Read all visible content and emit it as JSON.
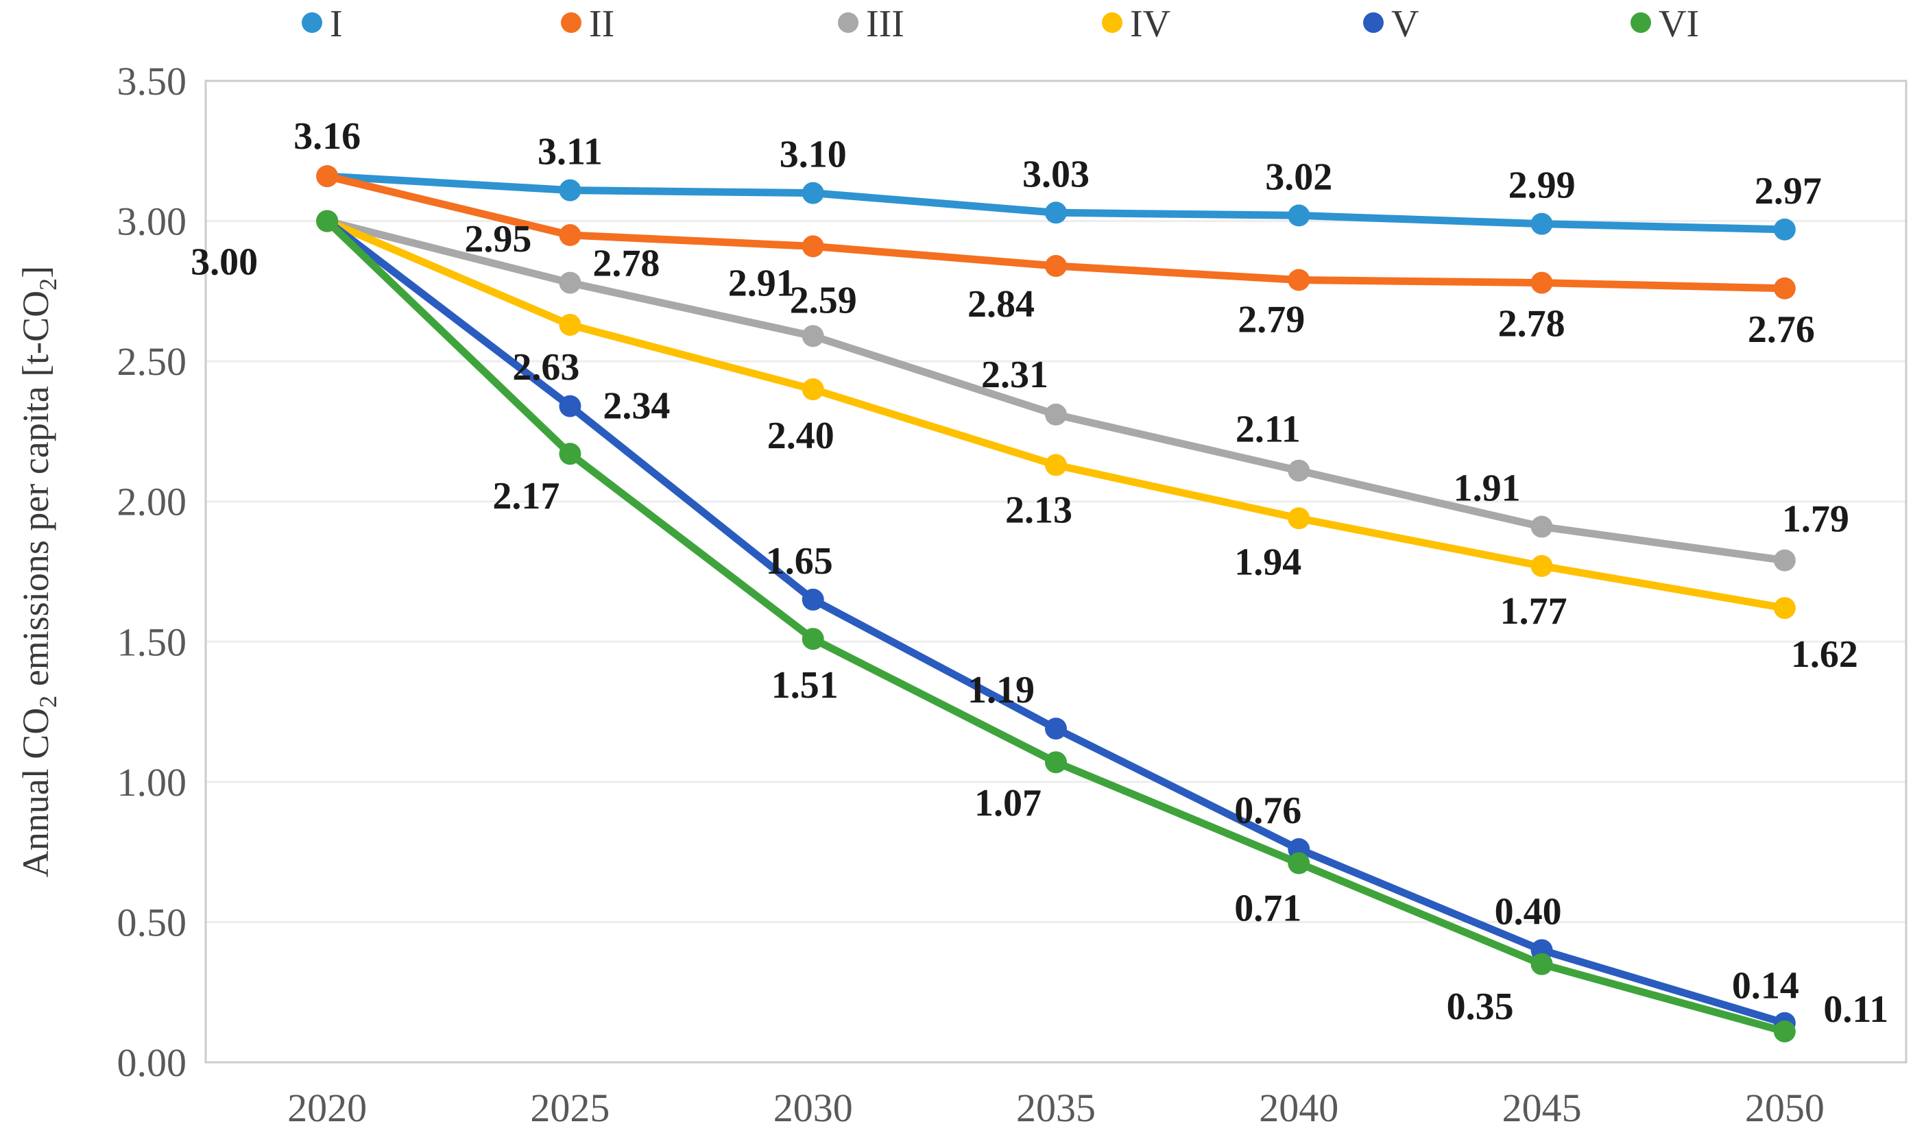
{
  "figure": {
    "background": "#FFFFFF",
    "data_label_color": "#1A1A1A",
    "axis_text_color": "#595959",
    "legend_text_color": "#3A3A3A",
    "gridline_color": "#EDEDED",
    "border_color": "#CCCCCC"
  },
  "legend": {
    "items": [
      {
        "label": "I",
        "color": "#2E93D1"
      },
      {
        "label": "II",
        "color": "#F46F20"
      },
      {
        "label": "III",
        "color": "#A8A8A8"
      },
      {
        "label": "IV",
        "color": "#FFC000"
      },
      {
        "label": "V",
        "color": "#2A5CBF"
      },
      {
        "label": "VI",
        "color": "#3FA33C"
      }
    ]
  },
  "y_axis": {
    "title_parts": [
      {
        "t": "Annual CO"
      },
      {
        "t": "2",
        "sub": true
      },
      {
        "t": " emissions per capita [t-CO"
      },
      {
        "t": "2",
        "sub": true
      },
      {
        "t": "]"
      }
    ],
    "ticks": [
      "3.50",
      "3.00",
      "2.50",
      "2.00",
      "1.50",
      "1.00",
      "0.50",
      "0.00"
    ]
  },
  "x_axis": {
    "labels": [
      "2020",
      "2025",
      "2030",
      "2035",
      "2040",
      "2045",
      "2050"
    ]
  },
  "chart_data": {
    "type": "line",
    "title": "",
    "xlabel": "",
    "ylabel": "Annual CO2 emissions per capita [t-CO2]",
    "categories": [
      2020,
      2025,
      2030,
      2035,
      2040,
      2045,
      2050
    ],
    "ylim": [
      0,
      3.5
    ],
    "ytick_step": 0.5,
    "grid": true,
    "legend_position": "top",
    "marker": "circle",
    "series": [
      {
        "name": "I",
        "color": "#2E93D1",
        "values": [
          3.16,
          3.11,
          3.1,
          3.03,
          3.02,
          2.99,
          2.97
        ],
        "labels": [
          null,
          "3.11",
          "3.10",
          "3.03",
          "3.02",
          "2.99",
          "2.97"
        ],
        "label_offsets": [
          null,
          [
            0,
            -58
          ],
          [
            0,
            -58
          ],
          [
            0,
            -58
          ],
          [
            0,
            -58
          ],
          [
            0,
            -58
          ],
          [
            5,
            -58
          ]
        ]
      },
      {
        "name": "II",
        "color": "#F46F20",
        "values": [
          3.16,
          2.95,
          2.91,
          2.84,
          2.79,
          2.78,
          2.76
        ],
        "labels": [
          "3.16",
          "2.95",
          "2.91",
          "2.84",
          "2.79",
          "2.78",
          "2.76"
        ],
        "label_offsets": [
          [
            0,
            -60
          ],
          [
            -105,
            4
          ],
          [
            -75,
            52
          ],
          [
            -80,
            54
          ],
          [
            -40,
            56
          ],
          [
            -15,
            58
          ],
          [
            -5,
            58
          ]
        ]
      },
      {
        "name": "III",
        "color": "#A8A8A8",
        "values": [
          3.0,
          2.78,
          2.59,
          2.31,
          2.11,
          1.91,
          1.79
        ],
        "labels": [
          "3.00",
          "2.78",
          "2.59",
          "2.31",
          "2.11",
          "1.91",
          "1.79"
        ],
        "label_offsets": [
          [
            -150,
            58
          ],
          [
            82,
            -30
          ],
          [
            15,
            -54
          ],
          [
            -60,
            -60
          ],
          [
            -45,
            -62
          ],
          [
            -80,
            -58
          ],
          [
            45,
            -62
          ]
        ]
      },
      {
        "name": "IV",
        "color": "#FFC000",
        "values": [
          3.0,
          2.63,
          2.4,
          2.13,
          1.94,
          1.77,
          1.62
        ],
        "labels": [
          null,
          "2.63",
          "2.40",
          "2.13",
          "1.94",
          "1.77",
          "1.62"
        ],
        "label_offsets": [
          null,
          [
            -35,
            60
          ],
          [
            -18,
            66
          ],
          [
            -25,
            64
          ],
          [
            -45,
            62
          ],
          [
            -12,
            64
          ],
          [
            58,
            66
          ]
        ]
      },
      {
        "name": "V",
        "color": "#2A5CBF",
        "values": [
          3.0,
          2.34,
          1.65,
          1.19,
          0.76,
          0.4,
          0.14
        ],
        "labels": [
          null,
          "2.34",
          "1.65",
          "1.19",
          "0.76",
          "0.40",
          "0.14"
        ],
        "label_offsets": [
          null,
          [
            97,
            -2
          ],
          [
            -20,
            -58
          ],
          [
            -80,
            -58
          ],
          [
            -45,
            -58
          ],
          [
            -20,
            -58
          ],
          [
            -28,
            -56
          ]
        ]
      },
      {
        "name": "VI",
        "color": "#3FA33C",
        "values": [
          3.0,
          2.17,
          1.51,
          1.07,
          0.71,
          0.35,
          0.11
        ],
        "labels": [
          null,
          "2.17",
          "1.51",
          "1.07",
          "0.71",
          "0.35",
          "0.11"
        ],
        "label_offsets": [
          null,
          [
            -64,
            60
          ],
          [
            -12,
            66
          ],
          [
            -70,
            58
          ],
          [
            -45,
            64
          ],
          [
            -90,
            60
          ],
          [
            104,
            -34
          ]
        ]
      }
    ]
  }
}
